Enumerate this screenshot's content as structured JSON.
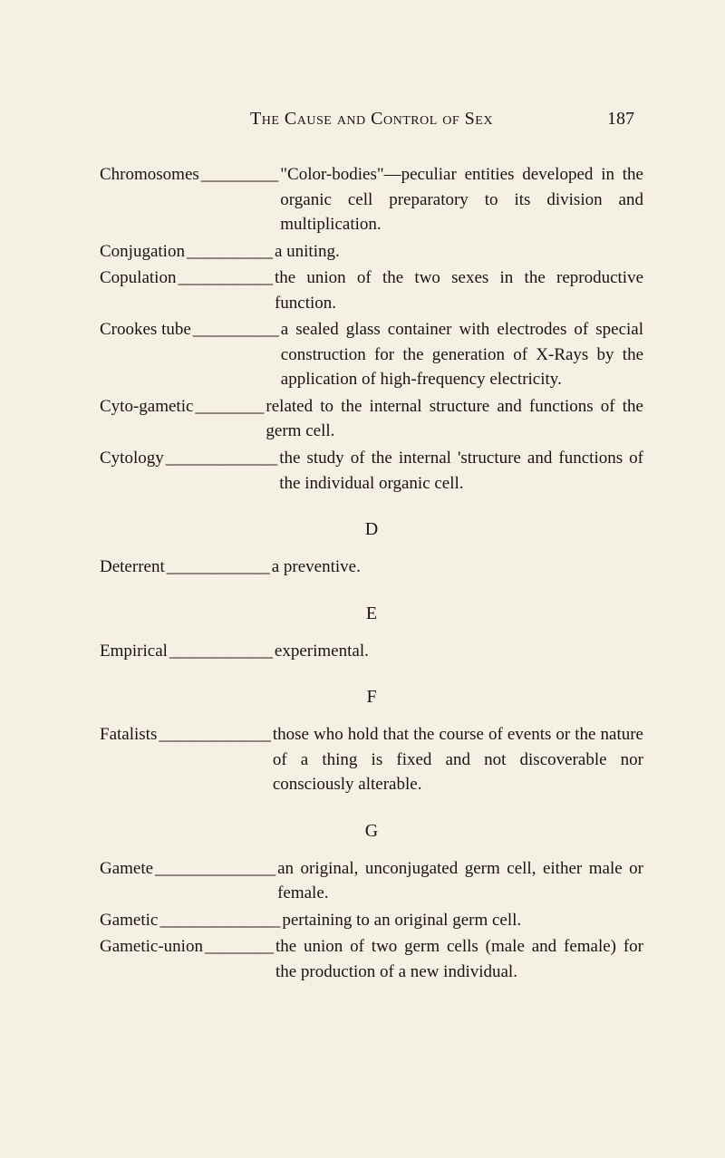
{
  "header": {
    "title": "The Cause and Control of Sex",
    "pageNumber": "187"
  },
  "sections": [
    {
      "letter": null,
      "entries": [
        {
          "term": "Chromosomes",
          "dashes": " _________",
          "definition": "\"Color-bodies\"—peculiar entities developed in the organic cell preparatory to its division and multiplication."
        },
        {
          "term": "Conjugation",
          "dashes": " __________",
          "definition": "a uniting."
        },
        {
          "term": "Copulation",
          "dashes": " ___________",
          "definition": "the union of the two sexes in the reproductive function."
        },
        {
          "term": "Crookes tube",
          "dashes": " __________",
          "definition": "a sealed glass container with electrodes of special construction for the generation of X-Rays by the application of high-frequency electricity."
        },
        {
          "term": "Cyto-gametic",
          "dashes": " ________ ",
          "definition": "related to the internal structure and functions of the germ cell."
        },
        {
          "term": "Cytology",
          "dashes": " _____________",
          "definition": "the study of the internal 'structure and functions of the individual organic cell."
        }
      ]
    },
    {
      "letter": "D",
      "entries": [
        {
          "term": "Deterrent",
          "dashes": " ____________",
          "definition": "a preventive."
        }
      ]
    },
    {
      "letter": "E",
      "entries": [
        {
          "term": "Empirical",
          "dashes": " ____________",
          "definition": "experimental."
        }
      ]
    },
    {
      "letter": "F",
      "entries": [
        {
          "term": "Fatalists",
          "dashes": " _____________",
          "definition": "those who hold that the course of events or the nature of a thing is fixed and not discoverable nor consciously alterable."
        }
      ]
    },
    {
      "letter": "G",
      "entries": [
        {
          "term": "Gamete",
          "dashes": " ______________",
          "definition": "an original, unconjugated germ cell, either male or female."
        },
        {
          "term": "Gametic",
          "dashes": " ______________",
          "definition": "pertaining to an original germ cell."
        },
        {
          "term": "Gametic-union",
          "dashes": " ________",
          "definition": "the union of two germ cells (male and female) for the production of a new individual."
        }
      ]
    }
  ]
}
